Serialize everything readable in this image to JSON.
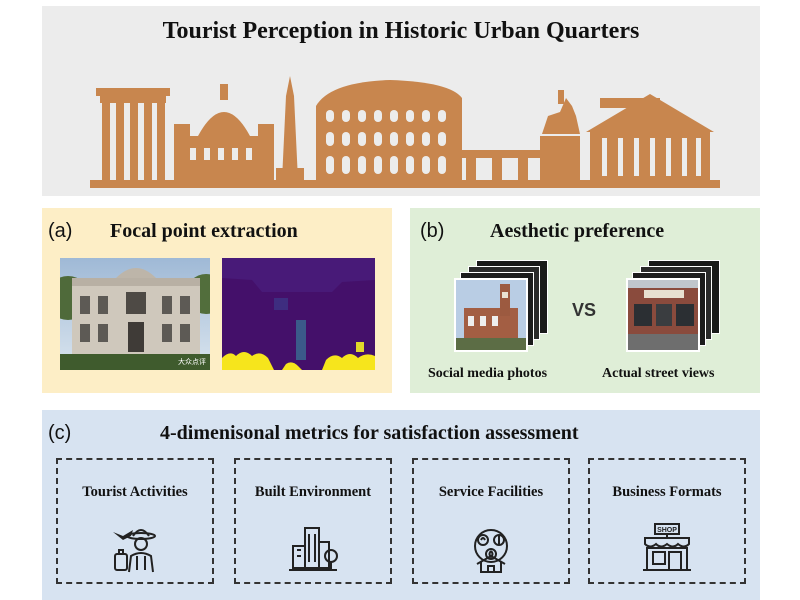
{
  "banner": {
    "title": "Tourist Perception in Historic Urban Quarters",
    "skyline_color": "#c8864e"
  },
  "panel_a": {
    "label": "(a)",
    "title": "Focal point extraction",
    "photo_watermark": "大众点评",
    "segmentation_colors": [
      "#44106a",
      "#3b5a8a",
      "#f6e51c"
    ]
  },
  "panel_b": {
    "label": "(b)",
    "title": "Aesthetic preference",
    "vs_text": "VS",
    "left_caption": "Social media photos",
    "right_caption": "Actual street views"
  },
  "panel_c": {
    "label": "(c)",
    "title": "4-dimenisonal metrics for satisfaction assessment",
    "metrics": [
      {
        "title": "Tourist Activities",
        "icon": "tourist-icon"
      },
      {
        "title": "Built Environment",
        "icon": "buildings-icon"
      },
      {
        "title": "Service Facilities",
        "icon": "service-icon"
      },
      {
        "title": "Business Formats",
        "icon": "shop-icon",
        "icon_text": "SHOP"
      }
    ]
  },
  "colors": {
    "panel_a_bg": "#fdeec6",
    "panel_b_bg": "#dfeed7",
    "panel_c_bg": "#d7e3f1",
    "banner_bg": "#ececec"
  }
}
